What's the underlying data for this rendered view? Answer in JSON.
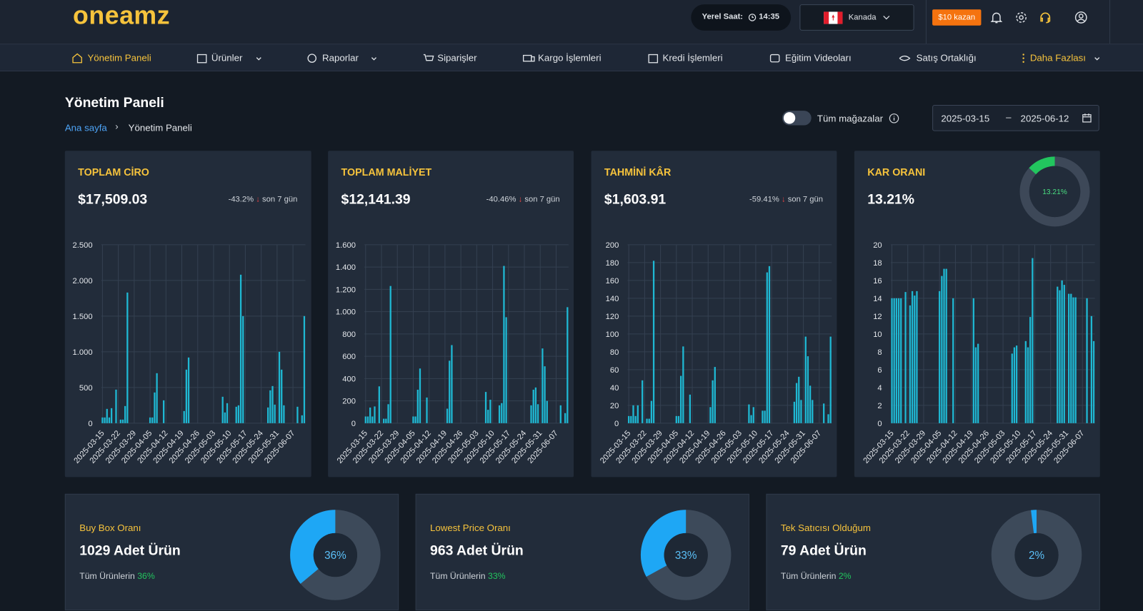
{
  "header": {
    "logo": "oneamz",
    "clock_label": "Yerel Saat:",
    "clock_time": "14:35",
    "country": "Kanada",
    "promo": "$10 kazan"
  },
  "nav": [
    "Yönetim Paneli",
    "Ürünler",
    "Raporlar",
    "Siparişler",
    "Kargo İşlemleri",
    "Kredi İşlemleri",
    "Eğitim Videoları",
    "Satış Ortaklığı",
    "Daha Fazlası"
  ],
  "page": {
    "title": "Yönetim Paneli",
    "breadcrumb": [
      "Ana sayfa",
      "Yönetim Paneli"
    ],
    "toggle": "Tüm mağazalar",
    "date_from": "2025-03-15",
    "date_to": "2025-06-12"
  },
  "stats": [
    {
      "title": "TOPLAM CİRO",
      "value": "$17,509.03",
      "change": "-43.2%",
      "period": "son 7 gün"
    },
    {
      "title": "TOPLAM MALİYET",
      "value": "$12,141.39",
      "change": "-40.46%",
      "period": "son 7 gün"
    },
    {
      "title": "TAHMİNİ KÂR",
      "value": "$1,603.91",
      "change": "-59.41%",
      "period": "son 7 gün"
    },
    {
      "title": "KAR ORANI",
      "value": "13.21%"
    }
  ],
  "bottom": [
    {
      "title": "Buy Box Oranı",
      "count": "1029 Adet Ürün",
      "note": "Tüm Ürünlerin"
    },
    {
      "title": "Lowest Price Oranı",
      "count": "963 Adet Ürün",
      "note": "Tüm Ürünlerin"
    },
    {
      "title": "Tek Satıcısı Olduğum",
      "count": "79 Adet Ürün",
      "note": "Tüm Ürünlerin"
    }
  ],
  "chart_data": [
    {
      "type": "bar",
      "color": "#1fb8d3",
      "grid": true,
      "categories": [
        "2025-03-15",
        null,
        null,
        null,
        null,
        null,
        null,
        "2025-03-22",
        null,
        null,
        null,
        null,
        null,
        null,
        "2025-03-29",
        null,
        null,
        null,
        null,
        null,
        null,
        "2025-04-05",
        null,
        null,
        null,
        null,
        null,
        null,
        "2025-04-12",
        null,
        null,
        null,
        null,
        null,
        null,
        "2025-04-19",
        null,
        null,
        null,
        null,
        null,
        null,
        "2025-04-26",
        null,
        null,
        null,
        null,
        null,
        null,
        "2025-05-03",
        null,
        null,
        null,
        null,
        null,
        null,
        "2025-05-10",
        null,
        null,
        null,
        null,
        null,
        null,
        "2025-05-17",
        null,
        null,
        null,
        null,
        null,
        null,
        "2025-05-24",
        null,
        null,
        null,
        null,
        null,
        null,
        "2025-05-31",
        null,
        null,
        null,
        null,
        null,
        null,
        "2025-06-07",
        null,
        null,
        null,
        null,
        null
      ],
      "values": [
        80,
        80,
        200,
        80,
        210,
        0,
        470,
        0,
        50,
        50,
        240,
        1830,
        0,
        0,
        0,
        0,
        0,
        0,
        0,
        0,
        0,
        80,
        80,
        430,
        700,
        0,
        0,
        320,
        0,
        0,
        0,
        0,
        0,
        0,
        0,
        0,
        170,
        750,
        920,
        0,
        0,
        0,
        0,
        0,
        0,
        0,
        0,
        0,
        0,
        0,
        0,
        0,
        0,
        370,
        150,
        280,
        0,
        0,
        0,
        230,
        250,
        2080,
        1500,
        0,
        0,
        0,
        0,
        0,
        0,
        0,
        0,
        0,
        0,
        220,
        460,
        520,
        260,
        0,
        1000,
        750,
        250,
        0,
        0,
        0,
        0,
        0,
        230,
        0,
        110,
        1500
      ],
      "ylim": [
        0,
        2500
      ],
      "yticks": [
        0,
        500,
        {
          "value": 1000,
          "label": "1.000"
        },
        {
          "value": 1500,
          "label": "1.500"
        },
        {
          "value": 2000,
          "label": "2.000"
        },
        {
          "value": 2500,
          "label": "2.500"
        }
      ]
    },
    {
      "type": "bar",
      "color": "#1fb8d3",
      "grid": true,
      "categories": [
        "2025-03-15",
        null,
        null,
        null,
        null,
        null,
        null,
        "2025-03-22",
        null,
        null,
        null,
        null,
        null,
        null,
        "2025-03-29",
        null,
        null,
        null,
        null,
        null,
        null,
        "2025-04-05",
        null,
        null,
        null,
        null,
        null,
        null,
        "2025-04-12",
        null,
        null,
        null,
        null,
        null,
        null,
        "2025-04-19",
        null,
        null,
        null,
        null,
        null,
        null,
        "2025-04-26",
        null,
        null,
        null,
        null,
        null,
        null,
        "2025-05-03",
        null,
        null,
        null,
        null,
        null,
        null,
        "2025-05-10",
        null,
        null,
        null,
        null,
        null,
        null,
        "2025-05-17",
        null,
        null,
        null,
        null,
        null,
        null,
        "2025-05-24",
        null,
        null,
        null,
        null,
        null,
        null,
        "2025-05-31",
        null,
        null,
        null,
        null,
        null,
        null,
        "2025-06-07",
        null,
        null,
        null,
        null,
        null
      ],
      "values": [
        60,
        60,
        140,
        60,
        150,
        0,
        330,
        0,
        40,
        40,
        170,
        1230,
        0,
        0,
        0,
        0,
        0,
        0,
        0,
        0,
        0,
        60,
        60,
        300,
        490,
        0,
        0,
        230,
        0,
        0,
        0,
        0,
        0,
        0,
        0,
        0,
        130,
        560,
        700,
        0,
        0,
        0,
        0,
        0,
        0,
        0,
        0,
        0,
        0,
        0,
        0,
        0,
        0,
        280,
        120,
        210,
        0,
        0,
        0,
        160,
        180,
        1410,
        950,
        0,
        0,
        0,
        0,
        0,
        0,
        0,
        0,
        0,
        0,
        160,
        300,
        320,
        170,
        0,
        670,
        510,
        200,
        0,
        0,
        0,
        0,
        0,
        160,
        0,
        90,
        1040
      ],
      "ylim": [
        0,
        1600
      ],
      "yticks": [
        0,
        200,
        400,
        600,
        800,
        {
          "value": 1000,
          "label": "1.000"
        },
        {
          "value": 1200,
          "label": "1.200"
        },
        {
          "value": 1400,
          "label": "1.400"
        },
        {
          "value": 1600,
          "label": "1.600"
        }
      ]
    },
    {
      "type": "bar",
      "color": "#1fb8d3",
      "grid": true,
      "categories": [
        "2025-03-15",
        null,
        null,
        null,
        null,
        null,
        null,
        "2025-03-22",
        null,
        null,
        null,
        null,
        null,
        null,
        "2025-03-29",
        null,
        null,
        null,
        null,
        null,
        null,
        "2025-04-05",
        null,
        null,
        null,
        null,
        null,
        null,
        "2025-04-12",
        null,
        null,
        null,
        null,
        null,
        null,
        "2025-04-19",
        null,
        null,
        null,
        null,
        null,
        null,
        "2025-04-26",
        null,
        null,
        null,
        null,
        null,
        null,
        "2025-05-03",
        null,
        null,
        null,
        null,
        null,
        null,
        "2025-05-10",
        null,
        null,
        null,
        null,
        null,
        null,
        "2025-05-17",
        null,
        null,
        null,
        null,
        null,
        null,
        "2025-05-24",
        null,
        null,
        null,
        null,
        null,
        null,
        "2025-05-31",
        null,
        null,
        null,
        null,
        null,
        null,
        "2025-06-07",
        null,
        null,
        null,
        null,
        null
      ],
      "values": [
        8,
        8,
        20,
        8,
        20,
        0,
        48,
        0,
        5,
        5,
        25,
        182,
        0,
        0,
        0,
        0,
        0,
        0,
        0,
        0,
        0,
        8,
        8,
        53,
        86,
        0,
        0,
        32,
        0,
        0,
        0,
        0,
        0,
        0,
        0,
        0,
        18,
        48,
        63,
        0,
        0,
        0,
        0,
        0,
        0,
        0,
        0,
        0,
        0,
        0,
        0,
        0,
        0,
        21,
        9,
        18,
        0,
        0,
        0,
        14,
        14,
        169,
        176,
        0,
        0,
        0,
        0,
        0,
        0,
        0,
        0,
        0,
        0,
        24,
        45,
        52,
        26,
        0,
        97,
        75,
        42,
        26,
        0,
        0,
        0,
        0,
        22,
        0,
        10,
        97
      ],
      "ylim": [
        0,
        200
      ],
      "yticks": [
        0,
        20,
        40,
        60,
        80,
        100,
        120,
        140,
        160,
        180,
        200
      ]
    },
    {
      "type": "bar",
      "color": "#1fb8d3",
      "grid": true,
      "categories": [
        "2025-03-15",
        null,
        null,
        null,
        null,
        null,
        null,
        "2025-03-22",
        null,
        null,
        null,
        null,
        null,
        null,
        "2025-03-29",
        null,
        null,
        null,
        null,
        null,
        null,
        "2025-04-05",
        null,
        null,
        null,
        null,
        null,
        null,
        "2025-04-12",
        null,
        null,
        null,
        null,
        null,
        null,
        "2025-04-19",
        null,
        null,
        null,
        null,
        null,
        null,
        "2025-04-26",
        null,
        null,
        null,
        null,
        null,
        null,
        "2025-05-03",
        null,
        null,
        null,
        null,
        null,
        null,
        "2025-05-10",
        null,
        null,
        null,
        null,
        null,
        null,
        "2025-05-17",
        null,
        null,
        null,
        null,
        null,
        null,
        "2025-05-24",
        null,
        null,
        null,
        null,
        null,
        null,
        "2025-05-31",
        null,
        null,
        null,
        null,
        null,
        null,
        "2025-06-07",
        null,
        null,
        null,
        null,
        null
      ],
      "values": [
        14,
        14,
        14,
        14,
        14,
        0,
        14.7,
        0,
        13.2,
        14.8,
        14.3,
        14.8,
        0,
        0,
        0,
        0,
        0,
        0,
        0,
        0,
        0,
        14.8,
        16.5,
        17.3,
        17.3,
        0,
        0,
        14,
        0,
        0,
        0,
        0,
        0,
        0,
        0,
        0,
        14,
        8.5,
        8.9,
        0,
        0,
        0,
        0,
        0,
        0,
        0,
        0,
        0,
        0,
        0,
        0,
        0,
        0,
        7.8,
        8.5,
        8.7,
        0,
        0,
        0,
        9.2,
        8.5,
        11.9,
        18.5,
        0,
        0,
        0,
        0,
        0,
        0,
        0,
        0,
        0,
        0,
        15.3,
        14.9,
        16,
        15.5,
        0,
        14.5,
        14.5,
        14.1,
        14.1,
        0,
        0,
        0,
        0,
        14,
        0,
        12,
        9.2
      ],
      "ylim": [
        0,
        20
      ],
      "yticks": [
        0,
        2,
        4,
        6,
        8,
        10,
        12,
        14,
        16,
        18,
        20
      ]
    },
    {
      "type": "donut",
      "values": [
        13.21
      ],
      "value_labels": [
        "13.21%"
      ],
      "color": "#22c55e"
    },
    {
      "type": "donut",
      "values": [
        36
      ],
      "value_labels": [
        "36%"
      ],
      "color": "#1ea7f5"
    },
    {
      "type": "donut",
      "values": [
        33
      ],
      "value_labels": [
        "33%"
      ],
      "color": "#1ea7f5"
    },
    {
      "type": "donut",
      "values": [
        2
      ],
      "value_labels": [
        "2%"
      ],
      "color": "#1ea7f5"
    }
  ]
}
